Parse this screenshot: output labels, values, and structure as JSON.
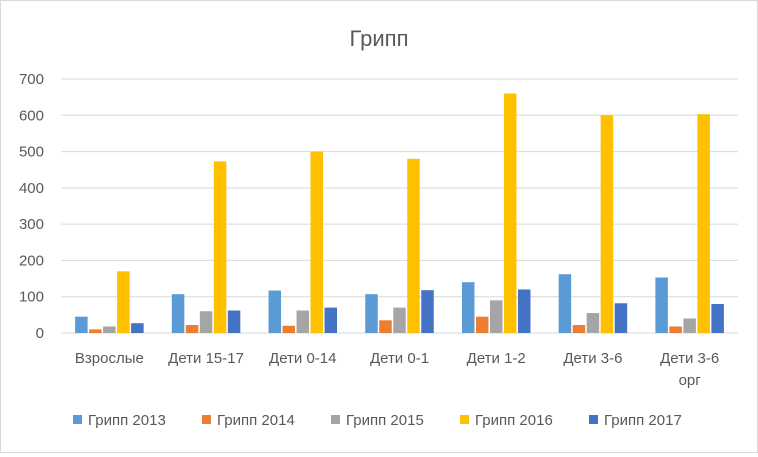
{
  "chart_data": {
    "type": "bar",
    "title": "Грипп",
    "xlabel": "",
    "ylabel": "",
    "ylim": [
      0,
      700
    ],
    "yticks": [
      0,
      100,
      200,
      300,
      400,
      500,
      600,
      700
    ],
    "grid": true,
    "legend_position": "bottom",
    "categories": [
      [
        "Взрослые"
      ],
      [
        "Дети 15-17"
      ],
      [
        "Дети 0-14"
      ],
      [
        "Дети 0-1"
      ],
      [
        "Дети 1-2"
      ],
      [
        "Дети 3-6"
      ],
      [
        "Дети 3-6",
        "орг"
      ]
    ],
    "series": [
      {
        "name": "Грипп 2013",
        "color": "#5b9bd5",
        "values": [
          45,
          107,
          117,
          107,
          140,
          162,
          153
        ]
      },
      {
        "name": "Грипп 2014",
        "color": "#ed7d31",
        "values": [
          10,
          22,
          20,
          35,
          45,
          22,
          18
        ]
      },
      {
        "name": "Грипп 2015",
        "color": "#a5a5a5",
        "values": [
          18,
          60,
          62,
          70,
          90,
          55,
          40
        ]
      },
      {
        "name": "Грипп 2016",
        "color": "#ffc000",
        "values": [
          170,
          473,
          500,
          480,
          660,
          600,
          603
        ]
      },
      {
        "name": "Грипп 2017",
        "color": "#4472c4",
        "values": [
          27,
          62,
          70,
          118,
          120,
          82,
          80
        ]
      }
    ]
  }
}
